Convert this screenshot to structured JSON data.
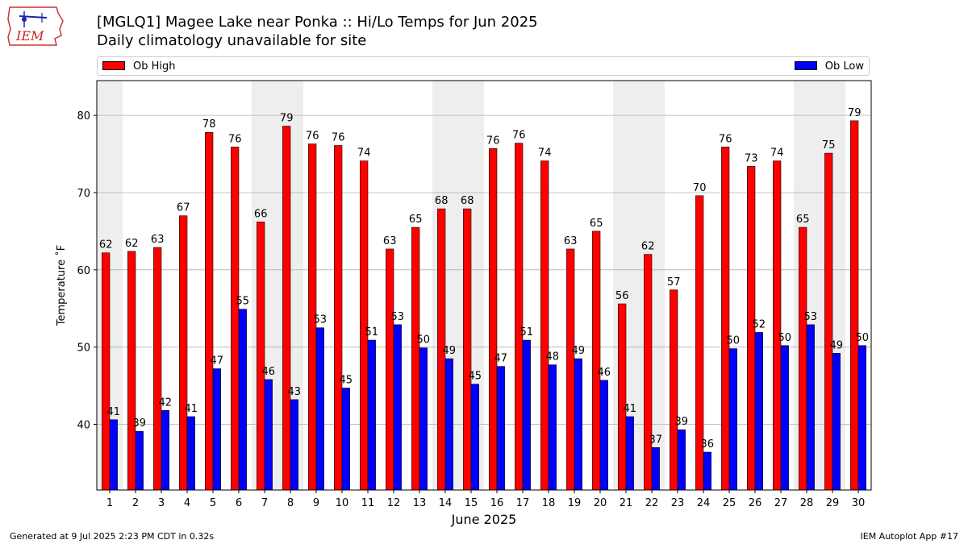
{
  "logo_text": "IEM",
  "title": "[MGLQ1] Magee Lake near Ponka :: Hi/Lo Temps for Jun 2025",
  "subtitle": "Daily climatology unavailable for site",
  "footer_left": "Generated at 9 Jul 2025 2:23 PM CDT in 0.32s",
  "footer_right": "IEM Autoplot App #17",
  "colors": {
    "high": "#ff0000",
    "low": "#0000ff",
    "weekend_band": "#eeeeee",
    "grid": "#b0b0b0"
  },
  "chart_data": {
    "type": "bar",
    "xlabel": "June 2025",
    "ylabel": "Temperature ˚F",
    "ylim": [
      31.5,
      84.5
    ],
    "yticks": [
      40,
      50,
      60,
      70,
      80
    ],
    "grid": "horizontal",
    "legend_placement": "top",
    "categories": [
      "1",
      "2",
      "3",
      "4",
      "5",
      "6",
      "7",
      "8",
      "9",
      "10",
      "11",
      "12",
      "13",
      "14",
      "15",
      "16",
      "17",
      "18",
      "19",
      "20",
      "21",
      "22",
      "23",
      "24",
      "25",
      "26",
      "27",
      "28",
      "29",
      "30"
    ],
    "weekend_days": [
      1,
      7,
      8,
      14,
      15,
      21,
      22,
      28,
      29
    ],
    "series": [
      {
        "name": "Ob High",
        "values": [
          62.2,
          62.4,
          62.9,
          67.0,
          77.8,
          75.9,
          66.2,
          78.6,
          76.3,
          76.1,
          74.1,
          62.7,
          65.5,
          67.9,
          67.9,
          75.7,
          76.4,
          74.1,
          62.7,
          65.0,
          55.6,
          62.0,
          57.4,
          69.6,
          75.9,
          73.4,
          74.1,
          65.5,
          75.1,
          79.3
        ],
        "labels": [
          "62",
          "62",
          "63",
          "67",
          "78",
          "76",
          "66",
          "79",
          "76",
          "76",
          "74",
          "63",
          "65",
          "68",
          "68",
          "76",
          "76",
          "74",
          "63",
          "65",
          "56",
          "62",
          "57",
          "70",
          "76",
          "73",
          "74",
          "65",
          "75",
          "79"
        ]
      },
      {
        "name": "Ob Low",
        "values": [
          40.6,
          39.1,
          41.8,
          41.0,
          47.2,
          54.9,
          45.8,
          43.2,
          52.5,
          44.7,
          50.9,
          52.9,
          49.9,
          48.5,
          45.2,
          47.5,
          50.9,
          47.7,
          48.5,
          45.7,
          41.0,
          37.0,
          39.3,
          36.4,
          49.8,
          51.9,
          50.2,
          52.9,
          49.2,
          50.2
        ],
        "labels": [
          "41",
          "39",
          "42",
          "41",
          "47",
          "55",
          "46",
          "43",
          "53",
          "45",
          "51",
          "53",
          "50",
          "49",
          "45",
          "47",
          "51",
          "48",
          "49",
          "46",
          "41",
          "37",
          "39",
          "36",
          "50",
          "52",
          "50",
          "53",
          "49",
          "50"
        ]
      }
    ]
  }
}
